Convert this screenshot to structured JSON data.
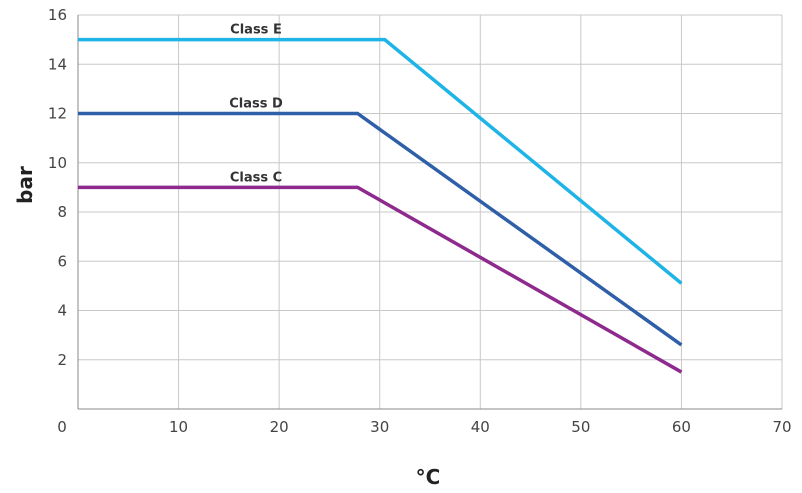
{
  "chart_data": {
    "type": "line",
    "xlabel": "°C",
    "ylabel": "bar",
    "xlim": [
      0,
      70
    ],
    "ylim": [
      0,
      16
    ],
    "x_ticks": [
      0,
      10,
      20,
      30,
      40,
      50,
      60,
      70
    ],
    "y_ticks": [
      2,
      4,
      6,
      8,
      10,
      12,
      14,
      16
    ],
    "grid": true,
    "series": [
      {
        "name": "Class E",
        "color": "#1eb4e6",
        "x": [
          0,
          30.5,
          60
        ],
        "y": [
          15,
          15,
          5.1
        ]
      },
      {
        "name": "Class D",
        "color": "#2f5fa8",
        "x": [
          0,
          27.8,
          60
        ],
        "y": [
          12,
          12,
          2.6
        ]
      },
      {
        "name": "Class C",
        "color": "#8e2a8e",
        "x": [
          0,
          27.8,
          60
        ],
        "y": [
          9,
          9,
          1.5
        ]
      }
    ]
  }
}
